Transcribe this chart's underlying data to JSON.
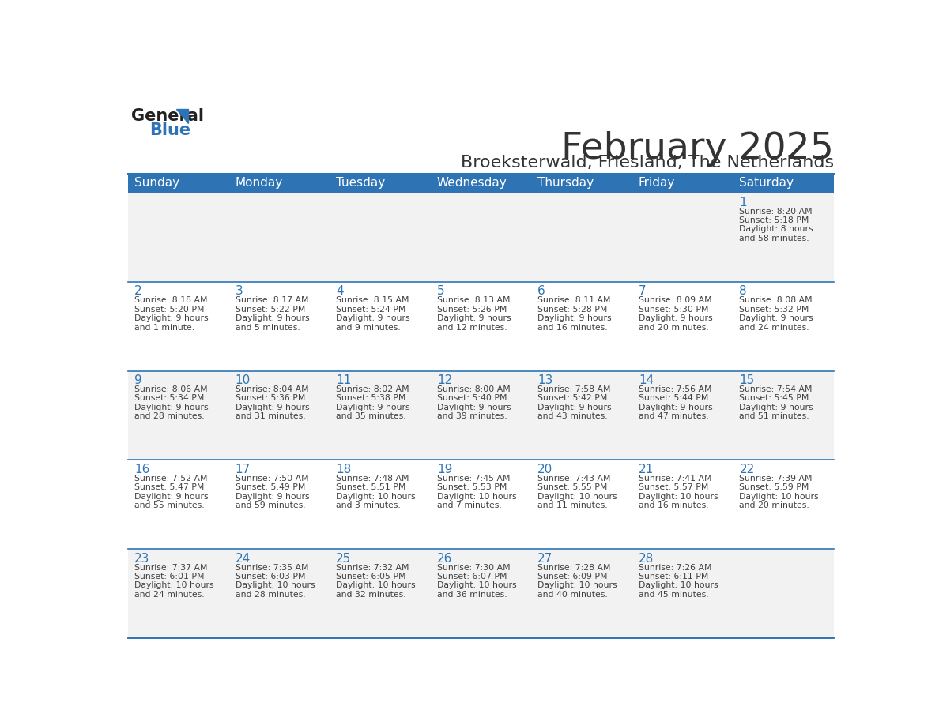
{
  "title": "February 2025",
  "subtitle": "Broeksterwald, Friesland, The Netherlands",
  "days_of_week": [
    "Sunday",
    "Monday",
    "Tuesday",
    "Wednesday",
    "Thursday",
    "Friday",
    "Saturday"
  ],
  "header_bg": "#2E74B5",
  "header_text": "#FFFFFF",
  "cell_bg_light": "#F2F2F2",
  "cell_bg_white": "#FFFFFF",
  "border_color": "#2E74B5",
  "day_number_color": "#2E74B5",
  "cell_text_color": "#404040",
  "title_color": "#333333",
  "subtitle_color": "#333333",
  "logo_general_color": "#222222",
  "logo_blue_color": "#2E74B5",
  "calendar_data": [
    [
      null,
      null,
      null,
      null,
      null,
      null,
      {
        "day": 1,
        "sunrise": "8:20 AM",
        "sunset": "5:18 PM",
        "daylight": "8 hours and 58 minutes."
      }
    ],
    [
      {
        "day": 2,
        "sunrise": "8:18 AM",
        "sunset": "5:20 PM",
        "daylight": "9 hours and 1 minute."
      },
      {
        "day": 3,
        "sunrise": "8:17 AM",
        "sunset": "5:22 PM",
        "daylight": "9 hours and 5 minutes."
      },
      {
        "day": 4,
        "sunrise": "8:15 AM",
        "sunset": "5:24 PM",
        "daylight": "9 hours and 9 minutes."
      },
      {
        "day": 5,
        "sunrise": "8:13 AM",
        "sunset": "5:26 PM",
        "daylight": "9 hours and 12 minutes."
      },
      {
        "day": 6,
        "sunrise": "8:11 AM",
        "sunset": "5:28 PM",
        "daylight": "9 hours and 16 minutes."
      },
      {
        "day": 7,
        "sunrise": "8:09 AM",
        "sunset": "5:30 PM",
        "daylight": "9 hours and 20 minutes."
      },
      {
        "day": 8,
        "sunrise": "8:08 AM",
        "sunset": "5:32 PM",
        "daylight": "9 hours and 24 minutes."
      }
    ],
    [
      {
        "day": 9,
        "sunrise": "8:06 AM",
        "sunset": "5:34 PM",
        "daylight": "9 hours and 28 minutes."
      },
      {
        "day": 10,
        "sunrise": "8:04 AM",
        "sunset": "5:36 PM",
        "daylight": "9 hours and 31 minutes."
      },
      {
        "day": 11,
        "sunrise": "8:02 AM",
        "sunset": "5:38 PM",
        "daylight": "9 hours and 35 minutes."
      },
      {
        "day": 12,
        "sunrise": "8:00 AM",
        "sunset": "5:40 PM",
        "daylight": "9 hours and 39 minutes."
      },
      {
        "day": 13,
        "sunrise": "7:58 AM",
        "sunset": "5:42 PM",
        "daylight": "9 hours and 43 minutes."
      },
      {
        "day": 14,
        "sunrise": "7:56 AM",
        "sunset": "5:44 PM",
        "daylight": "9 hours and 47 minutes."
      },
      {
        "day": 15,
        "sunrise": "7:54 AM",
        "sunset": "5:45 PM",
        "daylight": "9 hours and 51 minutes."
      }
    ],
    [
      {
        "day": 16,
        "sunrise": "7:52 AM",
        "sunset": "5:47 PM",
        "daylight": "9 hours and 55 minutes."
      },
      {
        "day": 17,
        "sunrise": "7:50 AM",
        "sunset": "5:49 PM",
        "daylight": "9 hours and 59 minutes."
      },
      {
        "day": 18,
        "sunrise": "7:48 AM",
        "sunset": "5:51 PM",
        "daylight": "10 hours and 3 minutes."
      },
      {
        "day": 19,
        "sunrise": "7:45 AM",
        "sunset": "5:53 PM",
        "daylight": "10 hours and 7 minutes."
      },
      {
        "day": 20,
        "sunrise": "7:43 AM",
        "sunset": "5:55 PM",
        "daylight": "10 hours and 11 minutes."
      },
      {
        "day": 21,
        "sunrise": "7:41 AM",
        "sunset": "5:57 PM",
        "daylight": "10 hours and 16 minutes."
      },
      {
        "day": 22,
        "sunrise": "7:39 AM",
        "sunset": "5:59 PM",
        "daylight": "10 hours and 20 minutes."
      }
    ],
    [
      {
        "day": 23,
        "sunrise": "7:37 AM",
        "sunset": "6:01 PM",
        "daylight": "10 hours and 24 minutes."
      },
      {
        "day": 24,
        "sunrise": "7:35 AM",
        "sunset": "6:03 PM",
        "daylight": "10 hours and 28 minutes."
      },
      {
        "day": 25,
        "sunrise": "7:32 AM",
        "sunset": "6:05 PM",
        "daylight": "10 hours and 32 minutes."
      },
      {
        "day": 26,
        "sunrise": "7:30 AM",
        "sunset": "6:07 PM",
        "daylight": "10 hours and 36 minutes."
      },
      {
        "day": 27,
        "sunrise": "7:28 AM",
        "sunset": "6:09 PM",
        "daylight": "10 hours and 40 minutes."
      },
      {
        "day": 28,
        "sunrise": "7:26 AM",
        "sunset": "6:11 PM",
        "daylight": "10 hours and 45 minutes."
      },
      null
    ]
  ]
}
